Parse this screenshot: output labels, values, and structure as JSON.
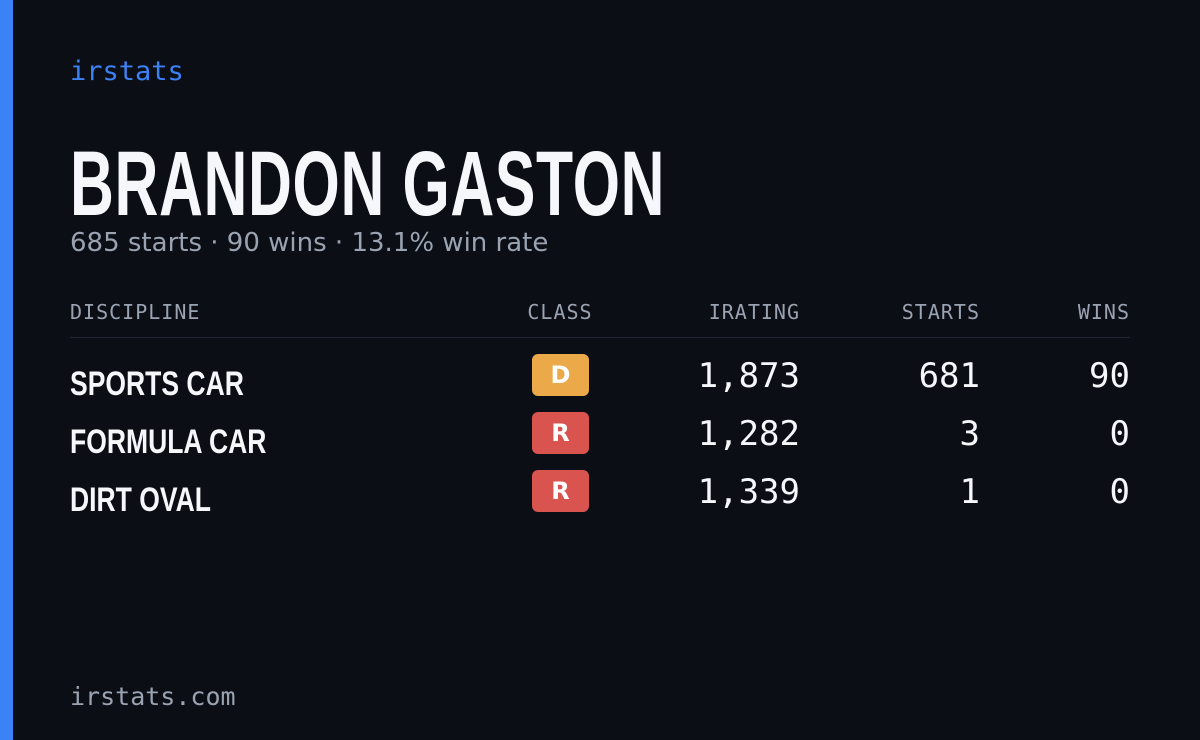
{
  "brand": "irstats",
  "player": {
    "name": "BRANDON GASTON",
    "summary": "685 starts · 90 wins · 13.1% win rate"
  },
  "table": {
    "columns": [
      "DISCIPLINE",
      "CLASS",
      "IRATING",
      "STARTS",
      "WINS"
    ],
    "rows": [
      [
        "SPORTS CAR",
        "D",
        "1,873",
        "681",
        "90"
      ],
      [
        "FORMULA CAR",
        "R",
        "1,282",
        "3",
        "0"
      ],
      [
        "DIRT OVAL",
        "R",
        "1,339",
        "1",
        "0"
      ]
    ],
    "class_colors": {
      "D": "#eba94a",
      "R": "#d9534f"
    }
  },
  "footer": "irstats.com"
}
